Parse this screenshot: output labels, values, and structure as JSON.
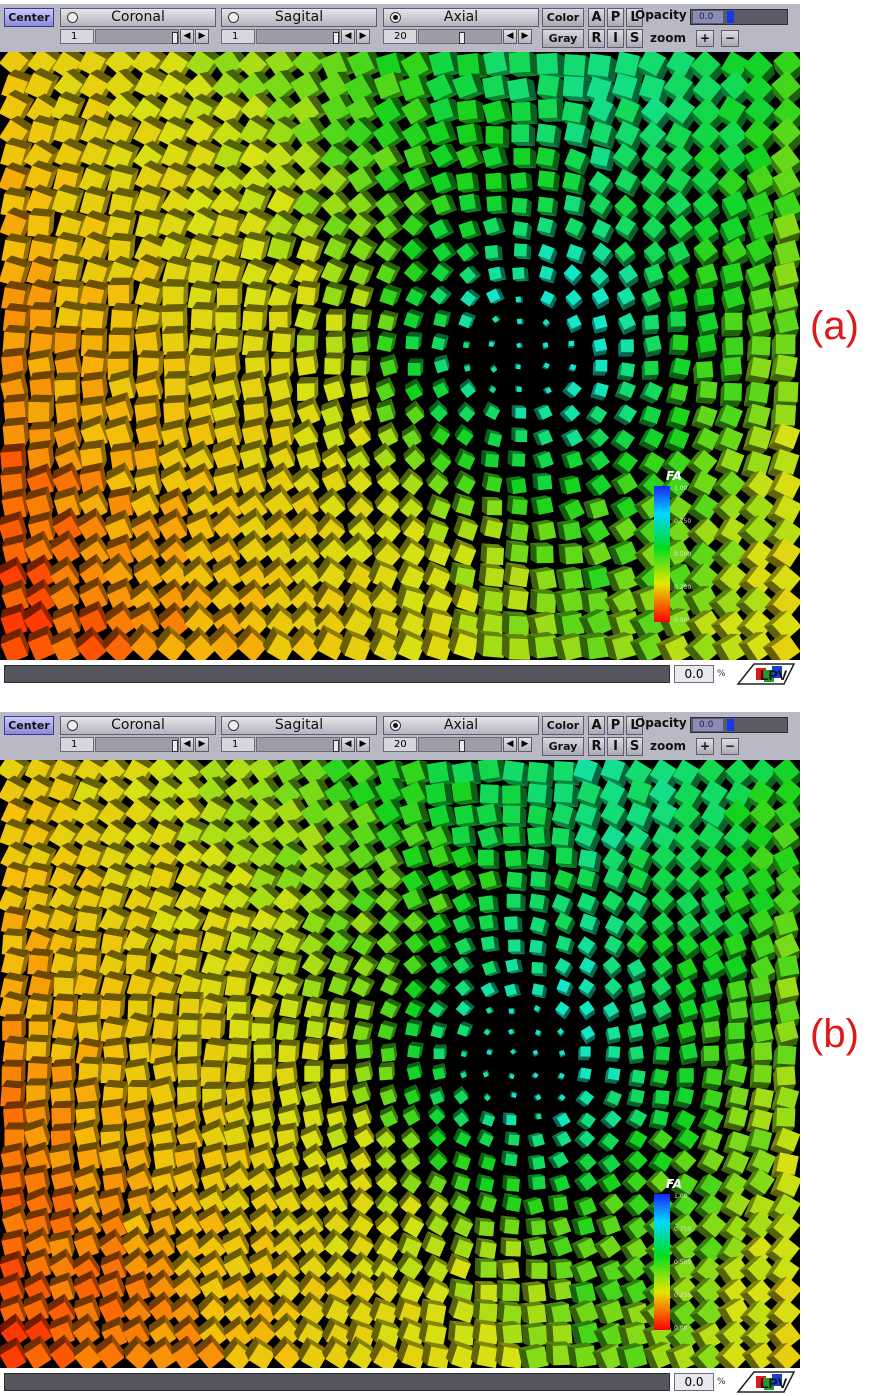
{
  "toolbar": {
    "center_label": "Center",
    "views": [
      {
        "label": "Coronal",
        "selected": false,
        "slice": "1"
      },
      {
        "label": "Sagital",
        "selected": false,
        "slice": "1"
      },
      {
        "label": "Axial",
        "selected": true,
        "slice": "20"
      }
    ],
    "color_label": "Color",
    "gray_label": "Gray",
    "orient_top": [
      "A",
      "P",
      "L"
    ],
    "orient_bottom": [
      "R",
      "I",
      "S"
    ],
    "opacity_label": "Opacity",
    "opacity_value": "0.0",
    "zoom_label": "zoom",
    "zoom_in": "+",
    "zoom_out": "−"
  },
  "legend": {
    "title": "FA",
    "ticks": [
      "1.00",
      "0.750",
      "0.500",
      "0.250",
      "0.00"
    ],
    "colors": {
      "high": "#1a22ff",
      "mid_high": "#00d8ff",
      "mid": "#00dd22",
      "low_mid": "#e6e600",
      "low": "#ff0000"
    }
  },
  "status": {
    "percent_value": "0.0",
    "percent_sign": "%"
  },
  "captions": [
    "(a)",
    "(b)"
  ],
  "colors": {
    "toolbar_bg": "#b9b9c6",
    "center_button": "#9a9ae6",
    "caption": "#e01818",
    "viewport_bg": "#000000"
  }
}
